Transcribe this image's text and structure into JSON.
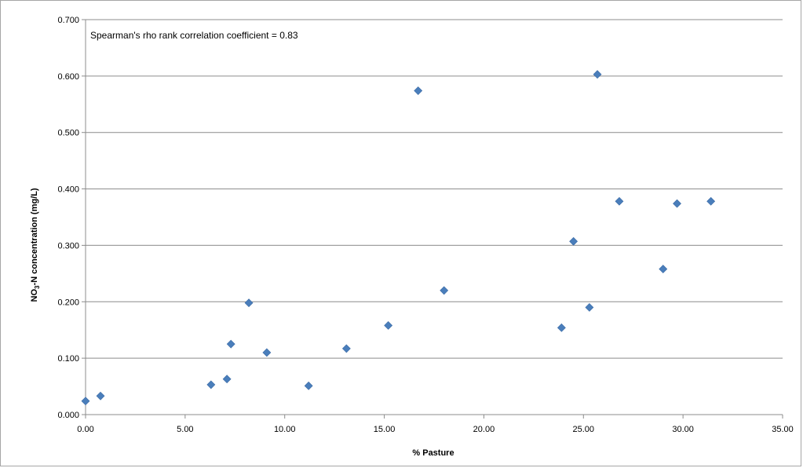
{
  "chart_data": {
    "type": "scatter",
    "title": "",
    "annotation": "Spearman's rho rank correlation coefficient = 0.83",
    "xlabel": "% Pasture",
    "ylabel_main": "NO",
    "ylabel_sub": "3",
    "ylabel_rest": "-N concentration (mg/L)",
    "xlim": [
      0,
      35
    ],
    "ylim": [
      0,
      0.7
    ],
    "x_ticks": [
      "0.00",
      "5.00",
      "10.00",
      "15.00",
      "20.00",
      "25.00",
      "30.00",
      "35.00"
    ],
    "y_ticks": [
      "0.000",
      "0.100",
      "0.200",
      "0.300",
      "0.400",
      "0.500",
      "0.600",
      "0.700"
    ],
    "grid": "horizontal",
    "marker": "diamond",
    "color": "#4a7ebb",
    "points": [
      {
        "x": 0.0,
        "y": 0.024
      },
      {
        "x": 0.75,
        "y": 0.033
      },
      {
        "x": 6.3,
        "y": 0.053
      },
      {
        "x": 7.1,
        "y": 0.063
      },
      {
        "x": 7.3,
        "y": 0.125
      },
      {
        "x": 8.2,
        "y": 0.198
      },
      {
        "x": 9.1,
        "y": 0.11
      },
      {
        "x": 11.2,
        "y": 0.051
      },
      {
        "x": 13.1,
        "y": 0.117
      },
      {
        "x": 15.2,
        "y": 0.158
      },
      {
        "x": 16.7,
        "y": 0.574
      },
      {
        "x": 18.0,
        "y": 0.22
      },
      {
        "x": 23.9,
        "y": 0.154
      },
      {
        "x": 24.5,
        "y": 0.307
      },
      {
        "x": 25.3,
        "y": 0.19
      },
      {
        "x": 25.7,
        "y": 0.603
      },
      {
        "x": 26.8,
        "y": 0.378
      },
      {
        "x": 29.0,
        "y": 0.258
      },
      {
        "x": 29.7,
        "y": 0.374
      },
      {
        "x": 31.4,
        "y": 0.378
      }
    ]
  }
}
